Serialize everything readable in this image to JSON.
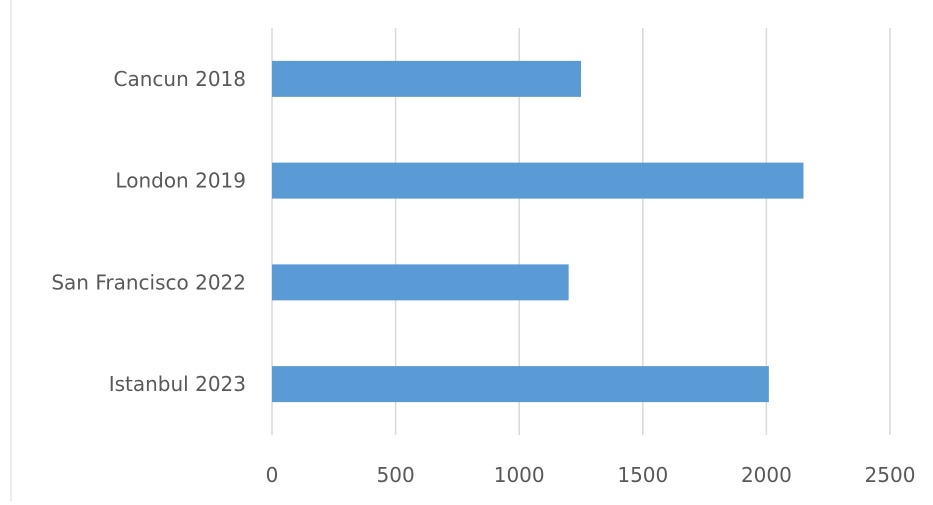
{
  "chart_data": {
    "type": "bar",
    "orientation": "horizontal",
    "title": "",
    "categories": [
      "Cancun 2018",
      "London 2019",
      "San Francisco 2022",
      "Istanbul 2023"
    ],
    "values": [
      1250,
      2150,
      1200,
      2010
    ],
    "xlim": [
      0,
      2500
    ],
    "ticks": [
      "0",
      "500",
      "1000",
      "1500",
      "2000",
      "2500"
    ],
    "xlabel": "",
    "ylabel": "",
    "grid": "vertical",
    "legend": "none",
    "colors": {
      "bar": "#5b9bd5",
      "grid": "#d9d9d9",
      "axis_text": "#595959",
      "frame": "#d9d9d9"
    }
  }
}
